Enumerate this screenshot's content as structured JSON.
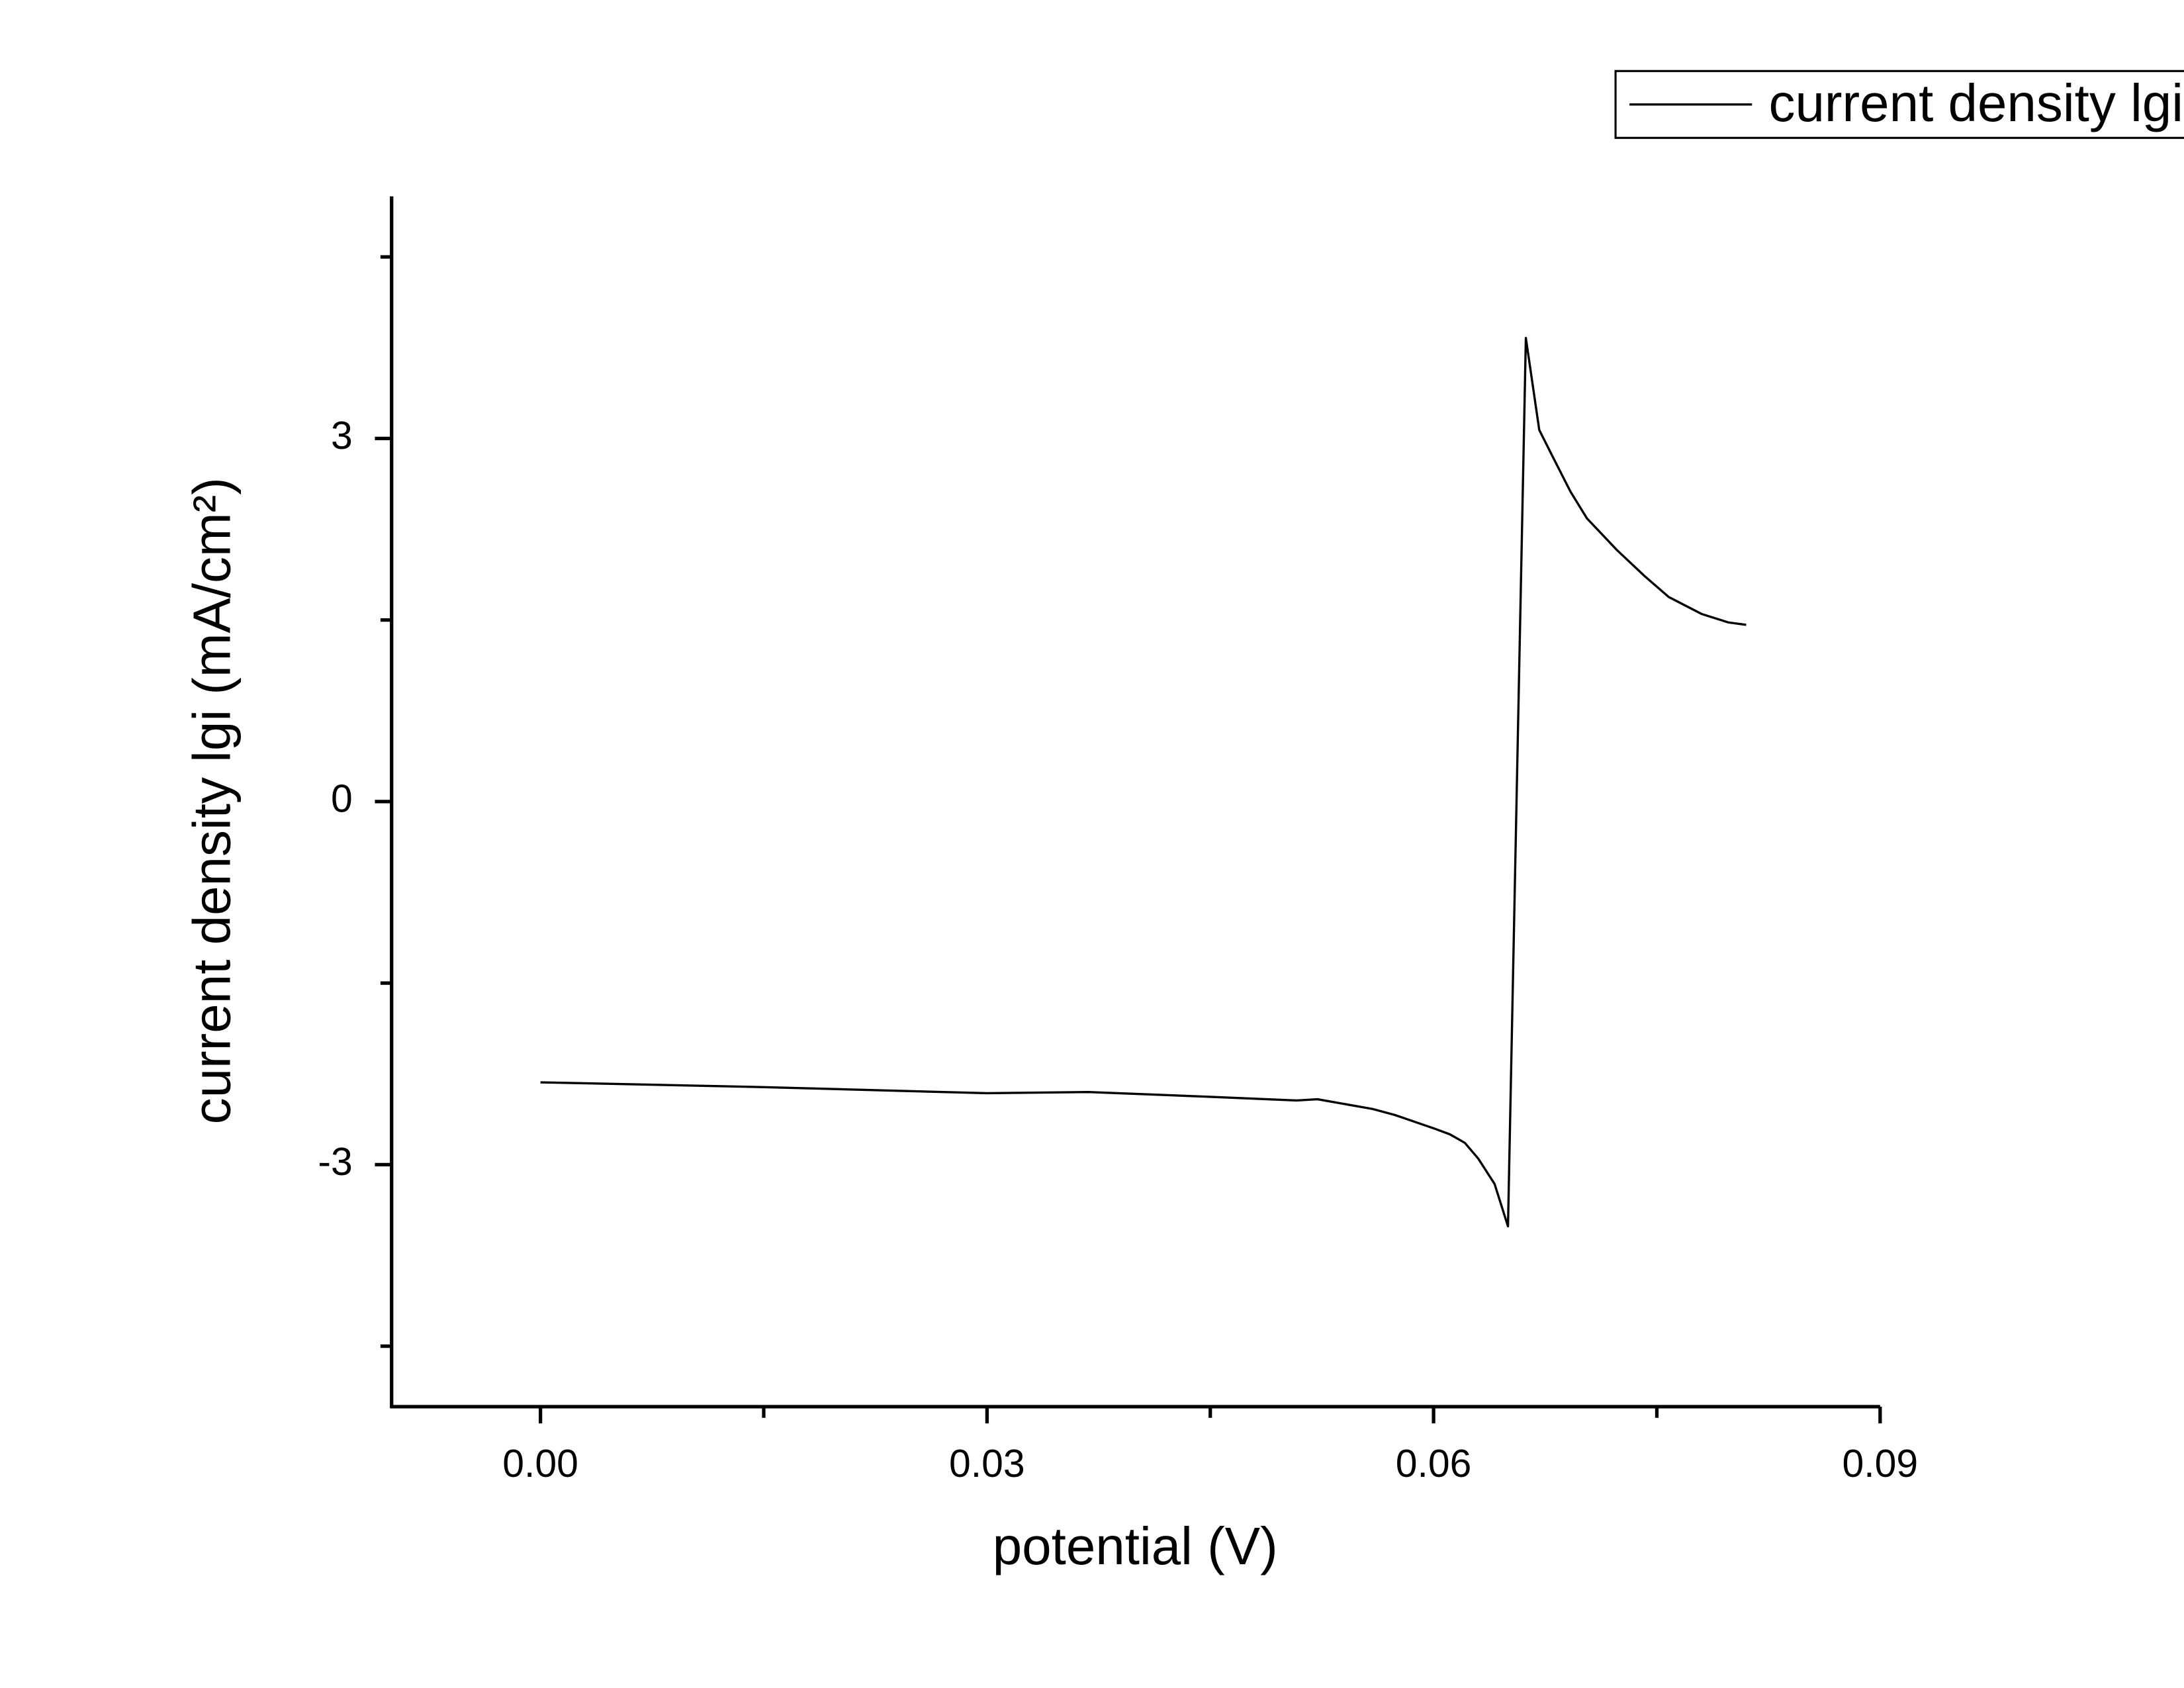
{
  "chart_data": {
    "type": "line",
    "xlabel": "potential (V)",
    "ylabel": "current density lgi (mA/cm²)",
    "xlim": [
      -0.01,
      0.09
    ],
    "xticks": [
      {
        "value": 0,
        "label": "0.00"
      },
      {
        "value": 0.03,
        "label": "0.03"
      },
      {
        "value": 0.06,
        "label": "0.06"
      },
      {
        "value": 0.09,
        "label": "0.09"
      }
    ],
    "xminor_ticks": [
      0.015,
      0.045,
      0.075
    ],
    "ylim": [
      -5,
      5
    ],
    "yticks": [
      -3,
      0,
      3
    ],
    "yminor_ticks": [
      -4.5,
      -1.5,
      1.5,
      4.5
    ],
    "grid": false,
    "legend": "top-right",
    "x": [
      0,
      0.015,
      0.03,
      0.0368,
      0.045,
      0.0508,
      0.0522,
      0.0559,
      0.0574,
      0.06,
      0.0611,
      0.0621,
      0.063,
      0.0641,
      0.065,
      0.0662,
      0.0671,
      0.068,
      0.0692,
      0.0703,
      0.0723,
      0.0742,
      0.0758,
      0.078,
      0.0798,
      0.081
    ],
    "series": [
      {
        "name": "current density lgi",
        "color": "#000000",
        "values": [
          -2.32,
          -2.36,
          -2.41,
          -2.4,
          -2.44,
          -2.47,
          -2.46,
          -2.54,
          -2.59,
          -2.7,
          -2.75,
          -2.82,
          -2.95,
          -3.16,
          -3.51,
          3.83,
          3.07,
          2.85,
          2.56,
          2.34,
          2.08,
          1.86,
          1.69,
          1.55,
          1.48,
          1.46
        ]
      }
    ]
  }
}
